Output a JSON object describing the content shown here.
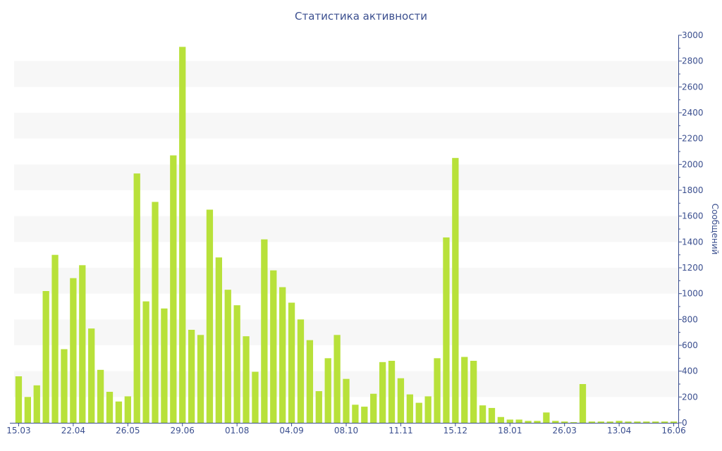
{
  "chart_data": {
    "type": "bar",
    "title": "Статистика активности",
    "xlabel": "",
    "ylabel": "Сообщений",
    "ylim": [
      0,
      3000
    ],
    "y_ticks": [
      0,
      200,
      400,
      600,
      800,
      1000,
      1200,
      1400,
      1600,
      1800,
      2000,
      2200,
      2400,
      2600,
      2800,
      3000
    ],
    "x_tick_labels": [
      {
        "index": 0,
        "label": "15.03"
      },
      {
        "index": 6,
        "label": "22.04"
      },
      {
        "index": 12,
        "label": "26.05"
      },
      {
        "index": 18,
        "label": "29.06"
      },
      {
        "index": 24,
        "label": "01.08"
      },
      {
        "index": 30,
        "label": "04.09"
      },
      {
        "index": 36,
        "label": "08.10"
      },
      {
        "index": 42,
        "label": "11.11"
      },
      {
        "index": 48,
        "label": "15.12"
      },
      {
        "index": 54,
        "label": "18.01"
      },
      {
        "index": 60,
        "label": "26.03"
      },
      {
        "index": 66,
        "label": "13.04"
      },
      {
        "index": 72,
        "label": "16.06"
      }
    ],
    "values": [
      360,
      200,
      290,
      1020,
      1300,
      570,
      1120,
      1220,
      730,
      410,
      240,
      165,
      205,
      1930,
      940,
      1710,
      885,
      2070,
      2910,
      720,
      680,
      1650,
      1280,
      1030,
      910,
      670,
      395,
      1420,
      1180,
      1050,
      930,
      800,
      640,
      245,
      500,
      680,
      340,
      140,
      125,
      225,
      470,
      480,
      345,
      220,
      155,
      205,
      500,
      1435,
      2050,
      510,
      480,
      135,
      115,
      45,
      25,
      25,
      15,
      15,
      80,
      15,
      10,
      5,
      300,
      10,
      10,
      10,
      15,
      10,
      10,
      10,
      10,
      10,
      10
    ],
    "grid": "alternating-bands",
    "color": "#b8e13a",
    "band_color": "#f7f7f7",
    "axis_color": "#3b4f8f"
  }
}
